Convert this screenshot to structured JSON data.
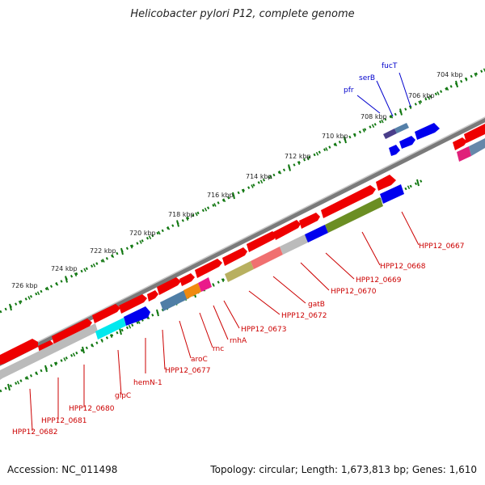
{
  "title": "Helicobacter pylori P12, complete genome",
  "footer": {
    "accession": "Accession: NC_011498",
    "summary": "Topology: circular; Length: 1,673,813 bp; Genes: 1,610"
  },
  "colors": {
    "forward_gene": "#ee0000",
    "label_reverse": "#cc0000",
    "label_forward": "#0000cc",
    "ruler": "#117711",
    "backbone": "#888888"
  },
  "ruler_labels": [
    "704 kbp",
    "706 kbp",
    "708 kbp",
    "710 kbp",
    "712 kbp",
    "714 kbp",
    "716 kbp",
    "718 kbp",
    "720 kbp",
    "722 kbp",
    "724 kbp",
    "726 kbp"
  ],
  "forward_labels": [
    "fucT",
    "serB",
    "pfr"
  ],
  "reverse_labels": [
    "HPP12_0667",
    "HPP12_0668",
    "HPP12_0669",
    "HPP12_0670",
    "gatB",
    "HPP12_0672",
    "HPP12_0673",
    "rnhA",
    "rnc",
    "aroC",
    "HPP12_0677",
    "hemN-1",
    "glpC",
    "HPP12_0680",
    "HPP12_0681",
    "HPP12_0682"
  ]
}
